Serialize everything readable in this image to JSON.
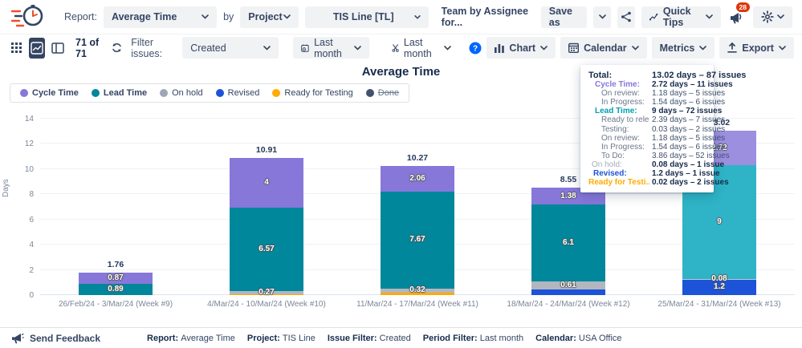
{
  "header": {
    "report_label": "Report:",
    "report_value": "Average Time",
    "by_label": "by",
    "group_value": "Project",
    "project_value": "TIS Line [TL]",
    "team_text": "Team by Assignee for...",
    "save_as_label": "Save as",
    "quick_tips_label": "Quick Tips",
    "notification_count": "28"
  },
  "toolbar": {
    "count_text": "71 of 71",
    "filter_label": "Filter issues:",
    "filter_value": "Created",
    "period_value": "Last month",
    "scope_value": "Last month",
    "chart_label": "Chart",
    "calendar_label": "Calendar",
    "metrics_label": "Metrics",
    "export_label": "Export"
  },
  "legend": {
    "items": [
      {
        "name": "Cycle Time",
        "color": "#8777d9",
        "bold": true,
        "strike": false
      },
      {
        "name": "Lead Time",
        "color": "#00879b",
        "bold": true,
        "strike": false
      },
      {
        "name": "On hold",
        "color": "#9ea7b3",
        "bold": false,
        "strike": false
      },
      {
        "name": "Revised",
        "color": "#1d53d8",
        "bold": false,
        "strike": false
      },
      {
        "name": "Ready for Testing",
        "color": "#ffab00",
        "bold": false,
        "strike": false
      },
      {
        "name": "Done",
        "color": "#42526e",
        "bold": false,
        "strike": true
      }
    ]
  },
  "chart_data": {
    "type": "bar",
    "stacked": true,
    "title": "Average Time",
    "ylabel": "Days",
    "ylim": [
      0,
      14
    ],
    "yticks": [
      0,
      2,
      4,
      6,
      8,
      10,
      12,
      14
    ],
    "grid": true,
    "categories": [
      "26/Feb/24 - 3/Mar/24 (Week #9)",
      "4/Mar/24 - 10/Mar/24 (Week #10)",
      "11/Mar/24 - 17/Mar/24 (Week #11)",
      "18/Mar/24 - 24/Mar/24 (Week #12)",
      "25/Mar/24 - 31/Mar/24 (Week #13)"
    ],
    "totals": [
      1.76,
      10.91,
      10.27,
      8.55,
      13.02
    ],
    "series": [
      {
        "name": "Ready for Testing",
        "color": "#ffab00",
        "values": [
          0,
          0.07,
          0.22,
          0,
          0.02
        ],
        "labels": [
          "",
          "",
          "",
          "",
          ""
        ]
      },
      {
        "name": "Revised",
        "color": "#1d53d8",
        "values": [
          0,
          0,
          0,
          0.46,
          1.2
        ],
        "labels": [
          "",
          "",
          "",
          "",
          "1.2"
        ]
      },
      {
        "name": "On hold",
        "color": "#b2b7bf",
        "values": [
          0,
          0.27,
          0.32,
          0.61,
          0.08
        ],
        "labels": [
          "",
          "0.27",
          "0.32",
          "0.61",
          "0.08"
        ]
      },
      {
        "name": "Lead Time",
        "color": "#00879b",
        "values": [
          0.89,
          6.57,
          7.67,
          6.1,
          9
        ],
        "labels": [
          "0.89",
          "6.57",
          "7.67",
          "6.1",
          "9"
        ]
      },
      {
        "name": "Cycle Time",
        "color": "#8777d9",
        "values": [
          0.87,
          4,
          2.06,
          1.38,
          2.72
        ],
        "labels": [
          "0.87",
          "4",
          "2.06",
          "1.38",
          "2.72"
        ]
      }
    ],
    "highlight": {
      "column": 4,
      "colors": {
        "Lead Time": "#2eb4c6",
        "Cycle Time": "#9d8fe0",
        "On hold": "#c3c8d1"
      }
    }
  },
  "tooltip": {
    "rows": [
      {
        "label": "Total:",
        "value": "13.02 days – 87 issues",
        "total": true,
        "indent": 0
      },
      {
        "label": "Cycle Time:",
        "value": "2.72 days – 11 issues",
        "color": "#8777d9",
        "bold": true,
        "value_bold": true,
        "indent": 8
      },
      {
        "label": "On review:",
        "value": "1.18 days – 5 issues",
        "color": "#6b778c",
        "indent": 16
      },
      {
        "label": "In Progress:",
        "value": "1.54 days – 6 issues",
        "color": "#6b778c",
        "indent": 16
      },
      {
        "label": "Lead Time:",
        "value": "9 days – 72 issues",
        "color": "#00a0b2",
        "bold": true,
        "value_bold": true,
        "indent": 8
      },
      {
        "label": "Ready to rele...",
        "value": "2.39 days – 7 issues",
        "color": "#6b778c",
        "indent": 16
      },
      {
        "label": "Testing:",
        "value": "0.03 days – 2 issues",
        "color": "#6b778c",
        "indent": 16
      },
      {
        "label": "On review:",
        "value": "1.18 days – 5 issues",
        "color": "#6b778c",
        "indent": 16
      },
      {
        "label": "In Progress:",
        "value": "1.54 days – 6 issues",
        "color": "#6b778c",
        "indent": 16
      },
      {
        "label": "To Do:",
        "value": "3.86 days – 52 issues",
        "color": "#6b778c",
        "indent": 16
      },
      {
        "label": "On hold:",
        "value": "0.08 days – 1 issue",
        "color": "#a5adba",
        "value_bold": true,
        "indent": 4
      },
      {
        "label": "Revised:",
        "value": "1.2 days – 1 issue",
        "color": "#1d53d8",
        "bold": true,
        "value_bold": true,
        "indent": 6
      },
      {
        "label": "Ready for Testi...",
        "value": "0.02 days – 2 issues",
        "color": "#ffab00",
        "bold": true,
        "value_bold": true,
        "indent": 0
      }
    ]
  },
  "footer": {
    "send_feedback": "Send Feedback",
    "items": [
      {
        "label": "Report:",
        "value": "Average Time"
      },
      {
        "label": "Project:",
        "value": "TIS Line"
      },
      {
        "label": "Issue Filter:",
        "value": "Created"
      },
      {
        "label": "Period Filter:",
        "value": "Last month"
      },
      {
        "label": "Calendar:",
        "value": "USA Office"
      }
    ]
  },
  "colors": {
    "accent_navy": "#344563",
    "dark_text": "#172b4d",
    "button_bg": "#f1f2f4",
    "badge_red": "#de350b",
    "help_blue": "#0065ff"
  }
}
